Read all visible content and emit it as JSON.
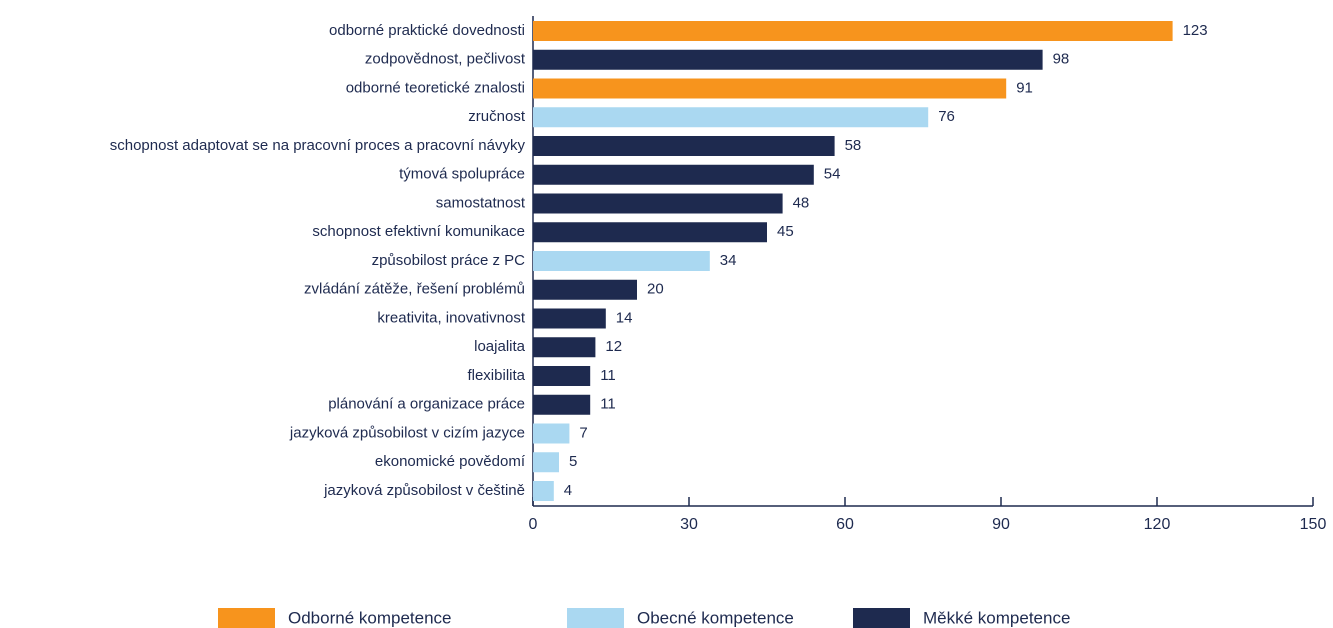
{
  "chart_data": {
    "type": "bar",
    "orientation": "horizontal",
    "categories": [
      "odborné praktické dovednosti",
      "zodpovědnost, pečlivost",
      "odborné teoretické znalosti",
      "zručnost",
      "schopnost adaptovat se na pracovní proces a pracovní návyky",
      "týmová spolupráce",
      "samostatnost",
      "schopnost efektivní komunikace",
      "způsobilost práce z PC",
      "zvládání zátěže, řešení problémů",
      "kreativita, inovativnost",
      "loajalita",
      "flexibilita",
      "plánování a organizace práce",
      "jazyková způsobilost v cizím jazyce",
      "ekonomické povědomí",
      "jazyková způsobilost v češtině"
    ],
    "series": [
      {
        "name": "Odborné kompetence",
        "color": "#f7941d",
        "values": [
          123,
          null,
          91,
          null,
          null,
          null,
          null,
          null,
          null,
          null,
          null,
          null,
          null,
          null,
          null,
          null,
          null
        ]
      },
      {
        "name": "Obecné kompetence",
        "color": "#aad8f1",
        "values": [
          null,
          null,
          null,
          76,
          null,
          null,
          null,
          null,
          34,
          null,
          null,
          null,
          null,
          null,
          7,
          5,
          4
        ]
      },
      {
        "name": "Měkké kompetence",
        "color": "#1e2a4f",
        "values": [
          null,
          98,
          null,
          null,
          58,
          54,
          48,
          45,
          null,
          20,
          14,
          12,
          11,
          11,
          null,
          null,
          null
        ]
      }
    ],
    "xlim": [
      0,
      150
    ],
    "xticks": [
      0,
      30,
      60,
      90,
      120,
      150
    ],
    "legend": "bottom"
  }
}
